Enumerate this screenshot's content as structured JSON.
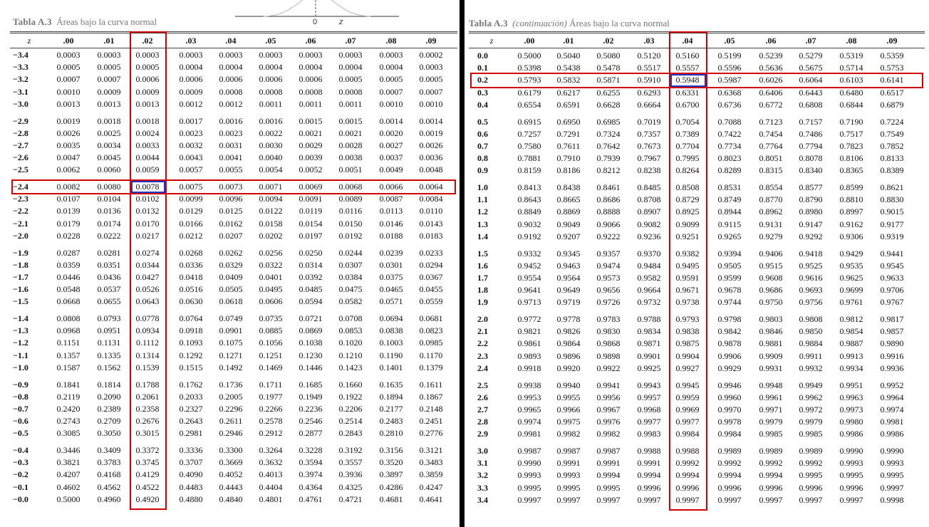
{
  "left": {
    "title_bold": "Tabla A.3",
    "title_rest": "Áreas bajo la curva normal",
    "curve_label_zero": "0",
    "curve_label_z": "z",
    "headers": [
      "z",
      ".00",
      ".01",
      ".02",
      ".03",
      ".04",
      ".05",
      ".06",
      ".07",
      ".08",
      ".09"
    ],
    "rows": [
      [
        "−3.4",
        "0.0003",
        "0.0003",
        "0.0003",
        "0.0003",
        "0.0003",
        "0.0003",
        "0.0003",
        "0.0003",
        "0.0003",
        "0.0002"
      ],
      [
        "−3.3",
        "0.0005",
        "0.0005",
        "0.0005",
        "0.0004",
        "0.0004",
        "0.0004",
        "0.0004",
        "0.0004",
        "0.0004",
        "0.0003"
      ],
      [
        "−3.2",
        "0.0007",
        "0.0007",
        "0.0006",
        "0.0006",
        "0.0006",
        "0.0006",
        "0.0006",
        "0.0005",
        "0.0005",
        "0.0005"
      ],
      [
        "−3.1",
        "0.0010",
        "0.0009",
        "0.0009",
        "0.0009",
        "0.0008",
        "0.0008",
        "0.0008",
        "0.0008",
        "0.0007",
        "0.0007"
      ],
      [
        "−3.0",
        "0.0013",
        "0.0013",
        "0.0013",
        "0.0012",
        "0.0012",
        "0.0011",
        "0.0011",
        "0.0011",
        "0.0010",
        "0.0010"
      ],
      [
        "−2.9",
        "0.0019",
        "0.0018",
        "0.0018",
        "0.0017",
        "0.0016",
        "0.0016",
        "0.0015",
        "0.0015",
        "0.0014",
        "0.0014"
      ],
      [
        "−2.8",
        "0.0026",
        "0.0025",
        "0.0024",
        "0.0023",
        "0.0023",
        "0.0022",
        "0.0021",
        "0.0021",
        "0.0020",
        "0.0019"
      ],
      [
        "−2.7",
        "0.0035",
        "0.0034",
        "0.0033",
        "0.0032",
        "0.0031",
        "0.0030",
        "0.0029",
        "0.0028",
        "0.0027",
        "0.0026"
      ],
      [
        "−2.6",
        "0.0047",
        "0.0045",
        "0.0044",
        "0.0043",
        "0.0041",
        "0.0040",
        "0.0039",
        "0.0038",
        "0.0037",
        "0.0036"
      ],
      [
        "−2.5",
        "0.0062",
        "0.0060",
        "0.0059",
        "0.0057",
        "0.0055",
        "0.0054",
        "0.0052",
        "0.0051",
        "0.0049",
        "0.0048"
      ],
      [
        "−2.4",
        "0.0082",
        "0.0080",
        "0.0078",
        "0.0075",
        "0.0073",
        "0.0071",
        "0.0069",
        "0.0068",
        "0.0066",
        "0.0064"
      ],
      [
        "−2.3",
        "0.0107",
        "0.0104",
        "0.0102",
        "0.0099",
        "0.0096",
        "0.0094",
        "0.0091",
        "0.0089",
        "0.0087",
        "0.0084"
      ],
      [
        "−2.2",
        "0.0139",
        "0.0136",
        "0.0132",
        "0.0129",
        "0.0125",
        "0.0122",
        "0.0119",
        "0.0116",
        "0.0113",
        "0.0110"
      ],
      [
        "−2.1",
        "0.0179",
        "0.0174",
        "0.0170",
        "0.0166",
        "0.0162",
        "0.0158",
        "0.0154",
        "0.0150",
        "0.0146",
        "0.0143"
      ],
      [
        "−2.0",
        "0.0228",
        "0.0222",
        "0.0217",
        "0.0212",
        "0.0207",
        "0.0202",
        "0.0197",
        "0.0192",
        "0.0188",
        "0.0183"
      ],
      [
        "−1.9",
        "0.0287",
        "0.0281",
        "0.0274",
        "0.0268",
        "0.0262",
        "0.0256",
        "0.0250",
        "0.0244",
        "0.0239",
        "0.0233"
      ],
      [
        "−1.8",
        "0.0359",
        "0.0351",
        "0.0344",
        "0.0336",
        "0.0329",
        "0.0322",
        "0.0314",
        "0.0307",
        "0.0301",
        "0.0294"
      ],
      [
        "−1.7",
        "0.0446",
        "0.0436",
        "0.0427",
        "0.0418",
        "0.0409",
        "0.0401",
        "0.0392",
        "0.0384",
        "0.0375",
        "0.0367"
      ],
      [
        "−1.6",
        "0.0548",
        "0.0537",
        "0.0526",
        "0.0516",
        "0.0505",
        "0.0495",
        "0.0485",
        "0.0475",
        "0.0465",
        "0.0455"
      ],
      [
        "−1.5",
        "0.0668",
        "0.0655",
        "0.0643",
        "0.0630",
        "0.0618",
        "0.0606",
        "0.0594",
        "0.0582",
        "0.0571",
        "0.0559"
      ],
      [
        "−1.4",
        "0.0808",
        "0.0793",
        "0.0778",
        "0.0764",
        "0.0749",
        "0.0735",
        "0.0721",
        "0.0708",
        "0.0694",
        "0.0681"
      ],
      [
        "−1.3",
        "0.0968",
        "0.0951",
        "0.0934",
        "0.0918",
        "0.0901",
        "0.0885",
        "0.0869",
        "0.0853",
        "0.0838",
        "0.0823"
      ],
      [
        "−1.2",
        "0.1151",
        "0.1131",
        "0.1112",
        "0.1093",
        "0.1075",
        "0.1056",
        "0.1038",
        "0.1020",
        "0.1003",
        "0.0985"
      ],
      [
        "−1.1",
        "0.1357",
        "0.1335",
        "0.1314",
        "0.1292",
        "0.1271",
        "0.1251",
        "0.1230",
        "0.1210",
        "0.1190",
        "0.1170"
      ],
      [
        "−1.0",
        "0.1587",
        "0.1562",
        "0.1539",
        "0.1515",
        "0.1492",
        "0.1469",
        "0.1446",
        "0.1423",
        "0.1401",
        "0.1379"
      ],
      [
        "−0.9",
        "0.1841",
        "0.1814",
        "0.1788",
        "0.1762",
        "0.1736",
        "0.1711",
        "0.1685",
        "0.1660",
        "0.1635",
        "0.1611"
      ],
      [
        "−0.8",
        "0.2119",
        "0.2090",
        "0.2061",
        "0.2033",
        "0.2005",
        "0.1977",
        "0.1949",
        "0.1922",
        "0.1894",
        "0.1867"
      ],
      [
        "−0.7",
        "0.2420",
        "0.2389",
        "0.2358",
        "0.2327",
        "0.2296",
        "0.2266",
        "0.2236",
        "0.2206",
        "0.2177",
        "0.2148"
      ],
      [
        "−0.6",
        "0.2743",
        "0.2709",
        "0.2676",
        "0.2643",
        "0.2611",
        "0.2578",
        "0.2546",
        "0.2514",
        "0.2483",
        "0.2451"
      ],
      [
        "−0.5",
        "0.3085",
        "0.3050",
        "0.3015",
        "0.2981",
        "0.2946",
        "0.2912",
        "0.2877",
        "0.2843",
        "0.2810",
        "0.2776"
      ],
      [
        "−0.4",
        "0.3446",
        "0.3409",
        "0.3372",
        "0.3336",
        "0.3300",
        "0.3264",
        "0.3228",
        "0.3192",
        "0.3156",
        "0.3121"
      ],
      [
        "−0.3",
        "0.3821",
        "0.3783",
        "0.3745",
        "0.3707",
        "0.3669",
        "0.3632",
        "0.3594",
        "0.3557",
        "0.3520",
        "0.3483"
      ],
      [
        "−0.2",
        "0.4207",
        "0.4168",
        "0.4129",
        "0.4090",
        "0.4052",
        "0.4013",
        "0.3974",
        "0.3936",
        "0.3897",
        "0.3859"
      ],
      [
        "−0.1",
        "0.4602",
        "0.4562",
        "0.4522",
        "0.4483",
        "0.4443",
        "0.4404",
        "0.4364",
        "0.4325",
        "0.4286",
        "0.4247"
      ],
      [
        "−0.0",
        "0.5000",
        "0.4960",
        "0.4920",
        "0.4880",
        "0.4840",
        "0.4801",
        "0.4761",
        "0.4721",
        "0.4681",
        "0.4641"
      ]
    ]
  },
  "right": {
    "title_bold": "Tabla A.3",
    "title_italic": "(continuación)",
    "title_rest": "Áreas bajo la curva normal",
    "headers": [
      "z",
      ".00",
      ".01",
      ".02",
      ".03",
      ".04",
      ".05",
      ".06",
      ".07",
      ".08",
      ".09"
    ],
    "rows": [
      [
        "0.0",
        "0.5000",
        "0.5040",
        "0.5080",
        "0.5120",
        "0.5160",
        "0.5199",
        "0.5239",
        "0.5279",
        "0.5319",
        "0.5359"
      ],
      [
        "0.1",
        "0.5398",
        "0.5438",
        "0.5478",
        "0.5517",
        "0.5557",
        "0.5596",
        "0.5636",
        "0.5675",
        "0.5714",
        "0.5753"
      ],
      [
        "0.2",
        "0.5793",
        "0.5832",
        "0.5871",
        "0.5910",
        "0.5948",
        "0.5987",
        "0.6026",
        "0.6064",
        "0.6103",
        "0.6141"
      ],
      [
        "0.3",
        "0.6179",
        "0.6217",
        "0.6255",
        "0.6293",
        "0.6331",
        "0.6368",
        "0.6406",
        "0.6443",
        "0.6480",
        "0.6517"
      ],
      [
        "0.4",
        "0.6554",
        "0.6591",
        "0.6628",
        "0.6664",
        "0.6700",
        "0.6736",
        "0.6772",
        "0.6808",
        "0.6844",
        "0.6879"
      ],
      [
        "0.5",
        "0.6915",
        "0.6950",
        "0.6985",
        "0.7019",
        "0.7054",
        "0.7088",
        "0.7123",
        "0.7157",
        "0.7190",
        "0.7224"
      ],
      [
        "0.6",
        "0.7257",
        "0.7291",
        "0.7324",
        "0.7357",
        "0.7389",
        "0.7422",
        "0.7454",
        "0.7486",
        "0.7517",
        "0.7549"
      ],
      [
        "0.7",
        "0.7580",
        "0.7611",
        "0.7642",
        "0.7673",
        "0.7704",
        "0.7734",
        "0.7764",
        "0.7794",
        "0.7823",
        "0.7852"
      ],
      [
        "0.8",
        "0.7881",
        "0.7910",
        "0.7939",
        "0.7967",
        "0.7995",
        "0.8023",
        "0.8051",
        "0.8078",
        "0.8106",
        "0.8133"
      ],
      [
        "0.9",
        "0.8159",
        "0.8186",
        "0.8212",
        "0.8238",
        "0.8264",
        "0.8289",
        "0.8315",
        "0.8340",
        "0.8365",
        "0.8389"
      ],
      [
        "1.0",
        "0.8413",
        "0.8438",
        "0.8461",
        "0.8485",
        "0.8508",
        "0.8531",
        "0.8554",
        "0.8577",
        "0.8599",
        "0.8621"
      ],
      [
        "1.1",
        "0.8643",
        "0.8665",
        "0.8686",
        "0.8708",
        "0.8729",
        "0.8749",
        "0.8770",
        "0.8790",
        "0.8810",
        "0.8830"
      ],
      [
        "1.2",
        "0.8849",
        "0.8869",
        "0.8888",
        "0.8907",
        "0.8925",
        "0.8944",
        "0.8962",
        "0.8980",
        "0.8997",
        "0.9015"
      ],
      [
        "1.3",
        "0.9032",
        "0.9049",
        "0.9066",
        "0.9082",
        "0.9099",
        "0.9115",
        "0.9131",
        "0.9147",
        "0.9162",
        "0.9177"
      ],
      [
        "1.4",
        "0.9192",
        "0.9207",
        "0.9222",
        "0.9236",
        "0.9251",
        "0.9265",
        "0.9279",
        "0.9292",
        "0.9306",
        "0.9319"
      ],
      [
        "1.5",
        "0.9332",
        "0.9345",
        "0.9357",
        "0.9370",
        "0.9382",
        "0.9394",
        "0.9406",
        "0.9418",
        "0.9429",
        "0.9441"
      ],
      [
        "1.6",
        "0.9452",
        "0.9463",
        "0.9474",
        "0.9484",
        "0.9495",
        "0.9505",
        "0.9515",
        "0.9525",
        "0.9535",
        "0.9545"
      ],
      [
        "1.7",
        "0.9554",
        "0.9564",
        "0.9573",
        "0.9582",
        "0.9591",
        "0.9599",
        "0.9608",
        "0.9616",
        "0.9625",
        "0.9633"
      ],
      [
        "1.8",
        "0.9641",
        "0.9649",
        "0.9656",
        "0.9664",
        "0.9671",
        "0.9678",
        "0.9686",
        "0.9693",
        "0.9699",
        "0.9706"
      ],
      [
        "1.9",
        "0.9713",
        "0.9719",
        "0.9726",
        "0.9732",
        "0.9738",
        "0.9744",
        "0.9750",
        "0.9756",
        "0.9761",
        "0.9767"
      ],
      [
        "2.0",
        "0.9772",
        "0.9778",
        "0.9783",
        "0.9788",
        "0.9793",
        "0.9798",
        "0.9803",
        "0.9808",
        "0.9812",
        "0.9817"
      ],
      [
        "2.1",
        "0.9821",
        "0.9826",
        "0.9830",
        "0.9834",
        "0.9838",
        "0.9842",
        "0.9846",
        "0.9850",
        "0.9854",
        "0.9857"
      ],
      [
        "2.2",
        "0.9861",
        "0.9864",
        "0.9868",
        "0.9871",
        "0.9875",
        "0.9878",
        "0.9881",
        "0.9884",
        "0.9887",
        "0.9890"
      ],
      [
        "2.3",
        "0.9893",
        "0.9896",
        "0.9898",
        "0.9901",
        "0.9904",
        "0.9906",
        "0.9909",
        "0.9911",
        "0.9913",
        "0.9916"
      ],
      [
        "2.4",
        "0.9918",
        "0.9920",
        "0.9922",
        "0.9925",
        "0.9927",
        "0.9929",
        "0.9931",
        "0.9932",
        "0.9934",
        "0.9936"
      ],
      [
        "2.5",
        "0.9938",
        "0.9940",
        "0.9941",
        "0.9943",
        "0.9945",
        "0.9946",
        "0.9948",
        "0.9949",
        "0.9951",
        "0.9952"
      ],
      [
        "2.6",
        "0.9953",
        "0.9955",
        "0.9956",
        "0.9957",
        "0.9959",
        "0.9960",
        "0.9961",
        "0.9962",
        "0.9963",
        "0.9964"
      ],
      [
        "2.7",
        "0.9965",
        "0.9966",
        "0.9967",
        "0.9968",
        "0.9969",
        "0.9970",
        "0.9971",
        "0.9972",
        "0.9973",
        "0.9974"
      ],
      [
        "2.8",
        "0.9974",
        "0.9975",
        "0.9976",
        "0.9977",
        "0.9977",
        "0.9978",
        "0.9979",
        "0.9979",
        "0.9980",
        "0.9981"
      ],
      [
        "2.9",
        "0.9981",
        "0.9982",
        "0.9982",
        "0.9983",
        "0.9984",
        "0.9984",
        "0.9985",
        "0.9985",
        "0.9986",
        "0.9986"
      ],
      [
        "3.0",
        "0.9987",
        "0.9987",
        "0.9987",
        "0.9988",
        "0.9988",
        "0.9989",
        "0.9989",
        "0.9989",
        "0.9990",
        "0.9990"
      ],
      [
        "3.1",
        "0.9990",
        "0.9991",
        "0.9991",
        "0.9991",
        "0.9992",
        "0.9992",
        "0.9992",
        "0.9992",
        "0.9993",
        "0.9993"
      ],
      [
        "3.2",
        "0.9993",
        "0.9993",
        "0.9994",
        "0.9994",
        "0.9994",
        "0.9994",
        "0.9994",
        "0.9995",
        "0.9995",
        "0.9995"
      ],
      [
        "3.3",
        "0.9995",
        "0.9995",
        "0.9995",
        "0.9996",
        "0.9996",
        "0.9996",
        "0.9996",
        "0.9996",
        "0.9996",
        "0.9997"
      ],
      [
        "3.4",
        "0.9997",
        "0.9997",
        "0.9997",
        "0.9997",
        "0.9997",
        "0.9997",
        "0.9997",
        "0.9997",
        "0.9997",
        "0.9998"
      ]
    ]
  },
  "colors": {
    "highlight_red": "#d40000",
    "highlight_blue": "#1a35c9"
  }
}
